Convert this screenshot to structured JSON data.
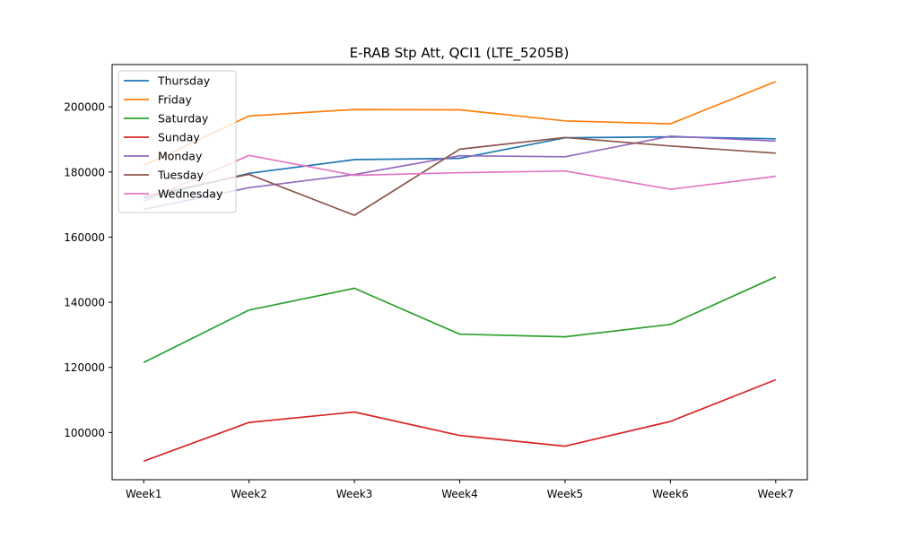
{
  "chart_data": {
    "type": "line",
    "title": "E-RAB Stp Att, QCI1 (LTE_5205B)",
    "xlabel": "",
    "ylabel": "",
    "categories": [
      "Week1",
      "Week2",
      "Week3",
      "Week4",
      "Week5",
      "Week6",
      "Week7"
    ],
    "ylim": [
      85500,
      213000
    ],
    "yticks": [
      100000,
      120000,
      140000,
      160000,
      180000,
      200000
    ],
    "ytick_labels": [
      "100000",
      "120000",
      "140000",
      "160000",
      "180000",
      "200000"
    ],
    "grid": false,
    "legend_position": "top-left",
    "series": [
      {
        "name": "Thursday",
        "color": "#1f77b4",
        "values": [
          171800,
          179600,
          183800,
          184200,
          190500,
          190800,
          190200
        ]
      },
      {
        "name": "Friday",
        "color": "#ff7f0e",
        "values": [
          182000,
          197200,
          199200,
          199100,
          195700,
          194800,
          207800
        ]
      },
      {
        "name": "Saturday",
        "color": "#2ca02c",
        "values": [
          121500,
          137600,
          144300,
          130200,
          129400,
          133200,
          147800
        ]
      },
      {
        "name": "Sunday",
        "color": "#d62728",
        "values": [
          91200,
          103100,
          106300,
          99100,
          95800,
          103400,
          116200
        ]
      },
      {
        "name": "Monday",
        "color": "#9467bd",
        "values": [
          168500,
          175200,
          179200,
          185000,
          184700,
          191000,
          189500
        ]
      },
      {
        "name": "Tuesday",
        "color": "#8c564b",
        "values": [
          172500,
          179300,
          166700,
          187000,
          190600,
          188000,
          185800
        ]
      },
      {
        "name": "Wednesday",
        "color": "#e377c2",
        "values": [
          171000,
          185100,
          179000,
          179800,
          180300,
          174700,
          178700
        ]
      }
    ]
  }
}
